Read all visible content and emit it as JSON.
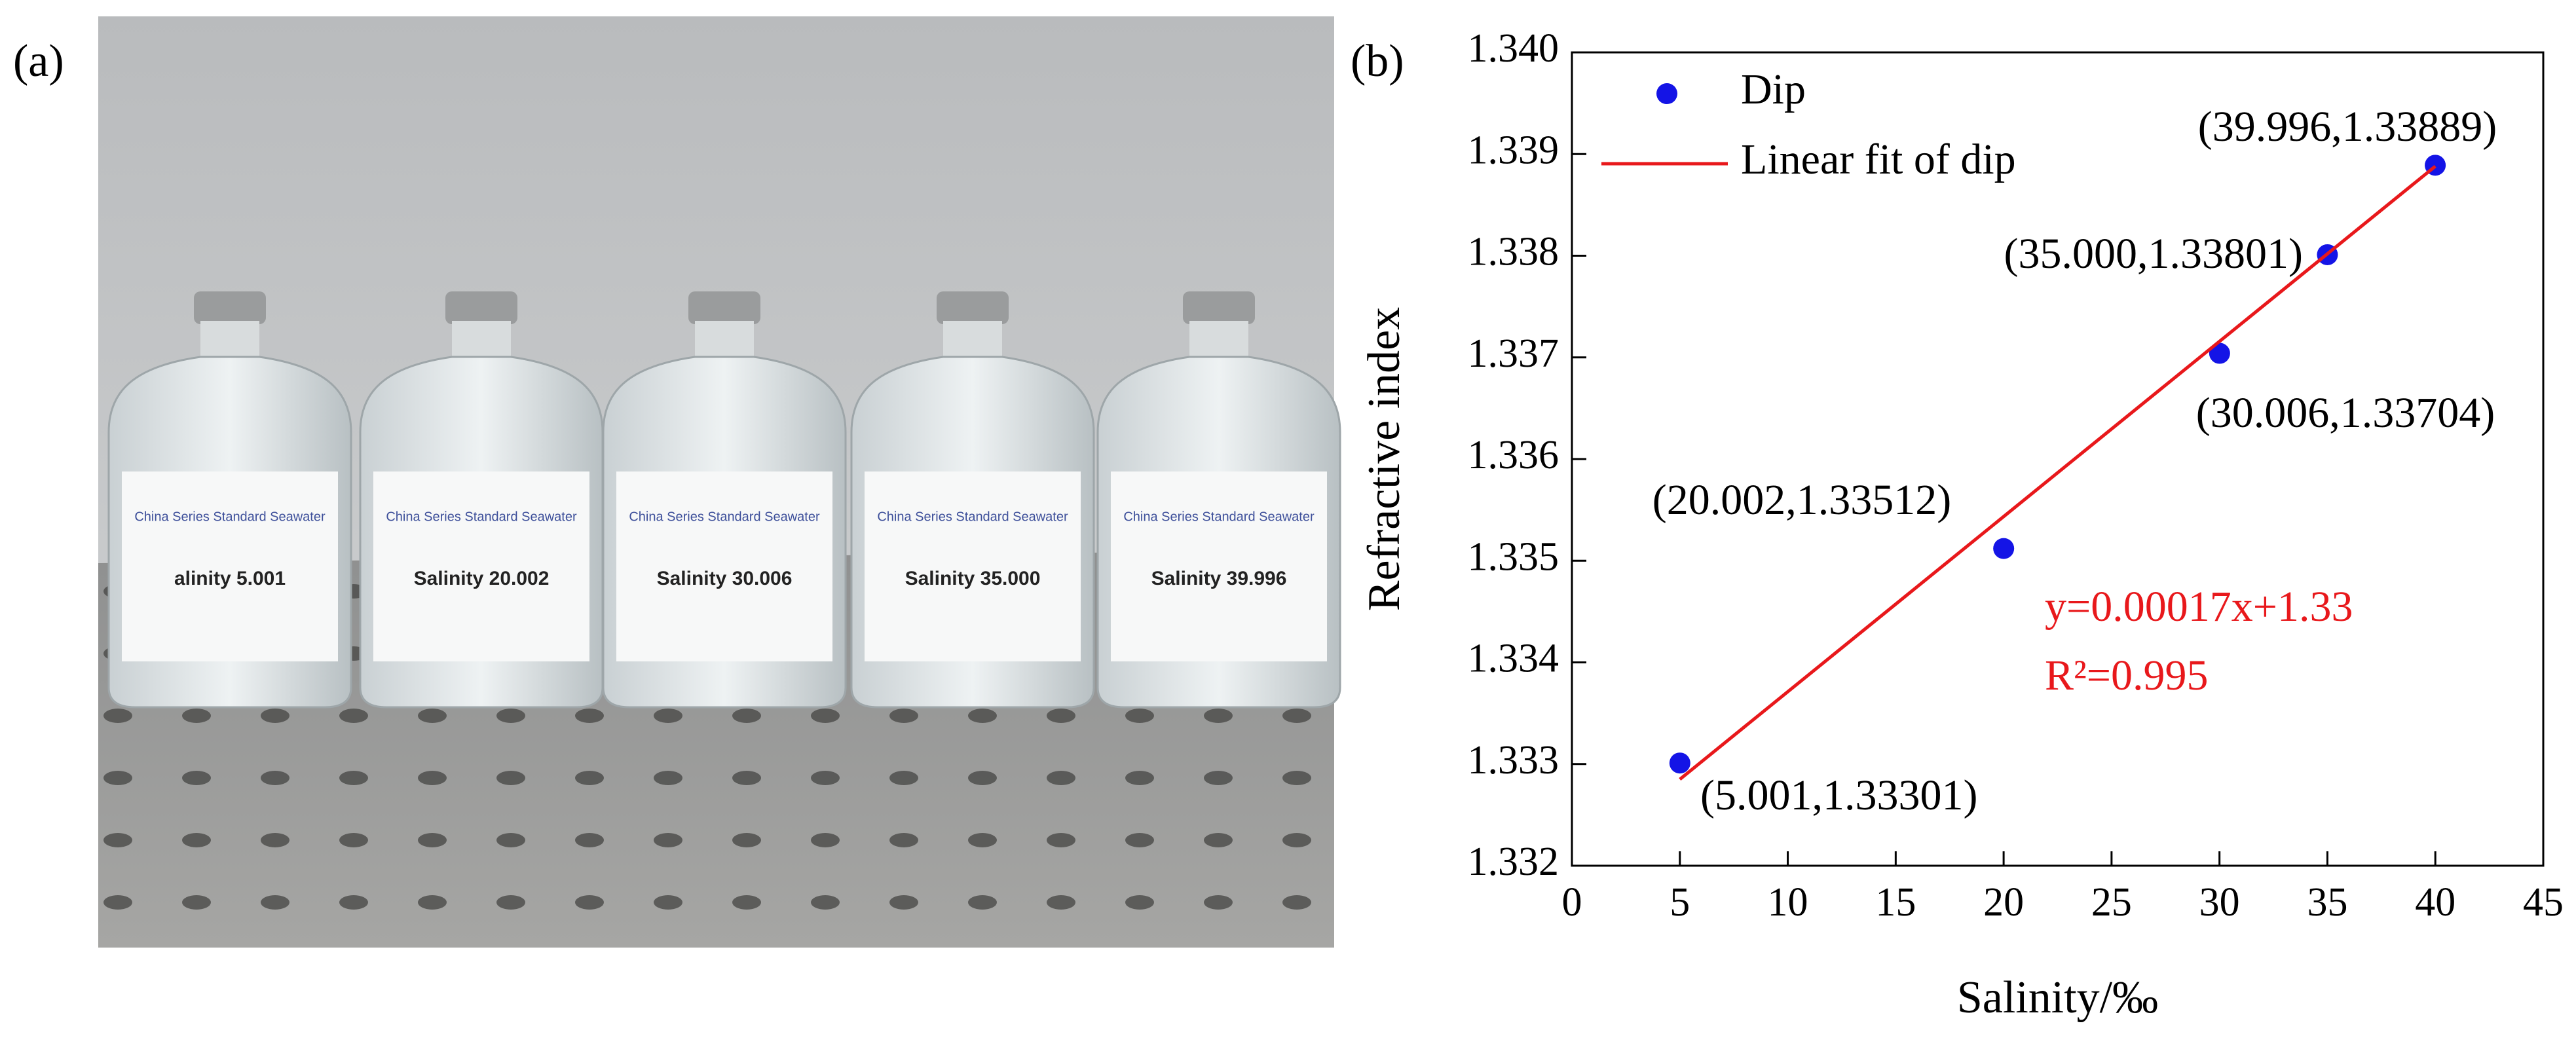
{
  "panel_labels": [
    "(a)",
    "(b)"
  ],
  "photo": {
    "bottles": [
      {
        "maker": "China Series Standard Seawater",
        "label": "alinity  5.001"
      },
      {
        "maker": "China Series Standard Seawater",
        "label": "Salinity  20.002"
      },
      {
        "maker": "China Series Standard Seawater",
        "label": "Salinity  30.006"
      },
      {
        "maker": "China Series Standard Seawater",
        "label": "Salinity    35.000"
      },
      {
        "maker": "China Series Standard Seawater",
        "label": "Salinity  39.996"
      }
    ]
  },
  "chart_data": {
    "type": "scatter",
    "x_label": "Salinity/‰",
    "y_label": "Refractive index",
    "xlim": [
      0,
      45
    ],
    "xticks": [
      0,
      5,
      10,
      15,
      20,
      25,
      30,
      35,
      40,
      45
    ],
    "ylim": [
      1.332,
      1.34
    ],
    "yticks": [
      1.332,
      1.333,
      1.334,
      1.335,
      1.336,
      1.337,
      1.338,
      1.339,
      {
        "value": 1.34,
        "label": "1.340"
      }
    ],
    "legend": "top-left",
    "series": [
      {
        "name": "Dip",
        "type": "scatter",
        "color": "#1414e6",
        "x": [
          5.001,
          20.002,
          30.006,
          35.0,
          39.996
        ],
        "values": [
          1.33301,
          1.33512,
          1.33704,
          1.33801,
          1.33889
        ],
        "value_labels": [
          "(5.001,1.33301)",
          "(20.002,1.33512)",
          "(30.006,1.33704)",
          "(35.000,1.33801)",
          "(39.996,1.33889)"
        ]
      },
      {
        "name": "Linear fit of dip",
        "type": "line",
        "color": "#e8181b",
        "x": [
          5,
          40
        ],
        "values": [
          1.33285,
          1.33888
        ]
      }
    ],
    "annotations": [
      "y=0.00017x+1.33",
      "R²=0.995"
    ]
  }
}
